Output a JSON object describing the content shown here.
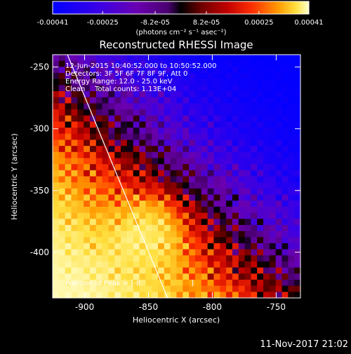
{
  "colorbar": {
    "tick_labels": [
      "-0.00041",
      "-0.00025",
      "-8.2e-05",
      "8.2e-05",
      "0.00025",
      "0.00041"
    ],
    "tick_values": [
      -0.00041,
      -0.00025,
      -8.2e-05,
      8.2e-05,
      0.00025,
      0.00041
    ],
    "range": [
      -0.00041,
      0.00041
    ],
    "units_label": "(photons cm⁻² s⁻¹ asec⁻²)",
    "stops": [
      {
        "t": 0.0,
        "color": "#0000ff"
      },
      {
        "t": 0.18,
        "color": "#3a00e6"
      },
      {
        "t": 0.33,
        "color": "#6a00b0"
      },
      {
        "t": 0.45,
        "color": "#4a0070"
      },
      {
        "t": 0.5,
        "color": "#000000"
      },
      {
        "t": 0.58,
        "color": "#6e0000"
      },
      {
        "t": 0.68,
        "color": "#c00000"
      },
      {
        "t": 0.78,
        "color": "#ff3000"
      },
      {
        "t": 0.88,
        "color": "#ff9a00"
      },
      {
        "t": 0.95,
        "color": "#ffe040"
      },
      {
        "t": 1.0,
        "color": "#ffffd0"
      }
    ]
  },
  "chart_data": {
    "type": "heatmap",
    "title": "Reconstructed RHESSI Image",
    "xlabel": "Heliocentric X (arcsec)",
    "ylabel": "Heliocentric Y (arcsec)",
    "xlim": [
      -925,
      -731
    ],
    "ylim": [
      -437,
      -240
    ],
    "x_ticks": [
      -900,
      -850,
      -800,
      -750
    ],
    "y_ticks": [
      -250,
      -300,
      -350,
      -400
    ],
    "annotations": [
      "12-Jun-2015 10:40:52.000 to 10:50:52.000",
      "Detectors: 3F 5F 6F 7F 8F 9F, Att 0",
      "Energy Range: 12.0 - 25.0 keV",
      "Clean",
      "Total counts: 1.13E+04"
    ],
    "peak_label": "Position of Peak = [-8",
    "peak_label_end": "]",
    "limb_line": [
      [
        -915,
        -236
      ],
      [
        -835,
        -437
      ]
    ],
    "flux_units": "photons cm^-2 s^-1 asec^-2",
    "colormap": "blue-black-red-yellow diverging",
    "model": {
      "grid_size": 40,
      "ridge_direction": [
        0.67,
        -0.74
      ],
      "ridge_offset": -0.02,
      "ridge_scale": 0.28,
      "texture_amplitude": 0.35,
      "texture_period_px": 14,
      "peak_x": -848,
      "peak_y": -383,
      "peak_amplitude": 0.00041
    }
  },
  "footer": {
    "timestamp": "11-Nov-2017 21:02"
  }
}
